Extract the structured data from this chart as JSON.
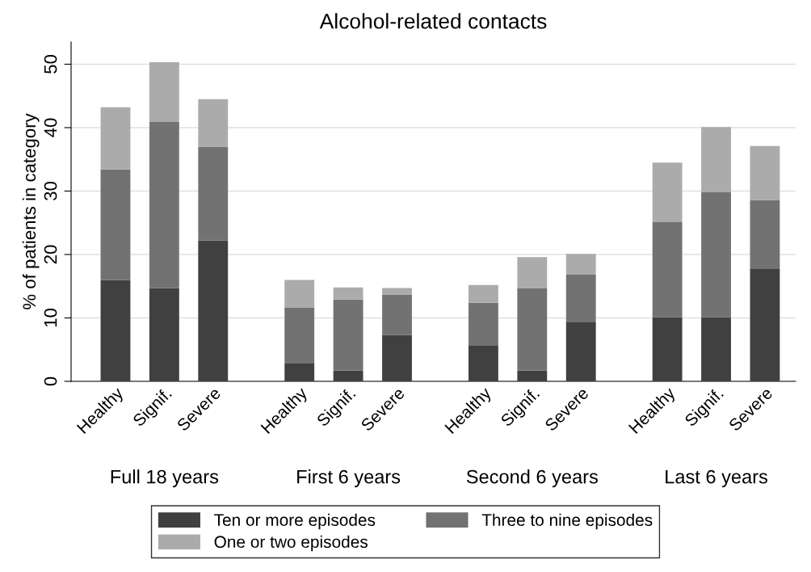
{
  "chart_data": {
    "type": "bar",
    "stacked": true,
    "title": "Alcohol-related contacts",
    "ylabel": "% of patients in category",
    "categories": [
      "Healthy",
      "Signif.",
      "Severe",
      "Healthy",
      "Signif.",
      "Severe",
      "Healthy",
      "Signif.",
      "Severe",
      "Healthy",
      "Signif.",
      "Severe"
    ],
    "annotations": [
      "Full 18 years",
      "First 6 years",
      "Second 6 years",
      "Last 6 years"
    ],
    "series": [
      {
        "name": "Ten or more episodes",
        "color": "#404040",
        "values": [
          16.0,
          14.7,
          22.2,
          2.9,
          1.7,
          7.3,
          5.6,
          1.7,
          9.4,
          10.1,
          10.1,
          17.8
        ]
      },
      {
        "name": "Three to nine episodes",
        "color": "#727272",
        "values": [
          17.4,
          26.2,
          14.8,
          8.7,
          11.2,
          6.4,
          6.8,
          13.0,
          7.4,
          15.0,
          19.7,
          10.8
        ]
      },
      {
        "name": "One or two episodes",
        "color": "#ababab",
        "values": [
          9.8,
          9.4,
          7.5,
          4.4,
          1.9,
          1.0,
          2.8,
          4.9,
          3.3,
          9.4,
          10.3,
          8.5
        ]
      }
    ],
    "ylim": [
      0,
      53.5
    ],
    "yticks": [
      0,
      10,
      20,
      30,
      40,
      50
    ],
    "grid": "y",
    "legend": "bottom"
  }
}
